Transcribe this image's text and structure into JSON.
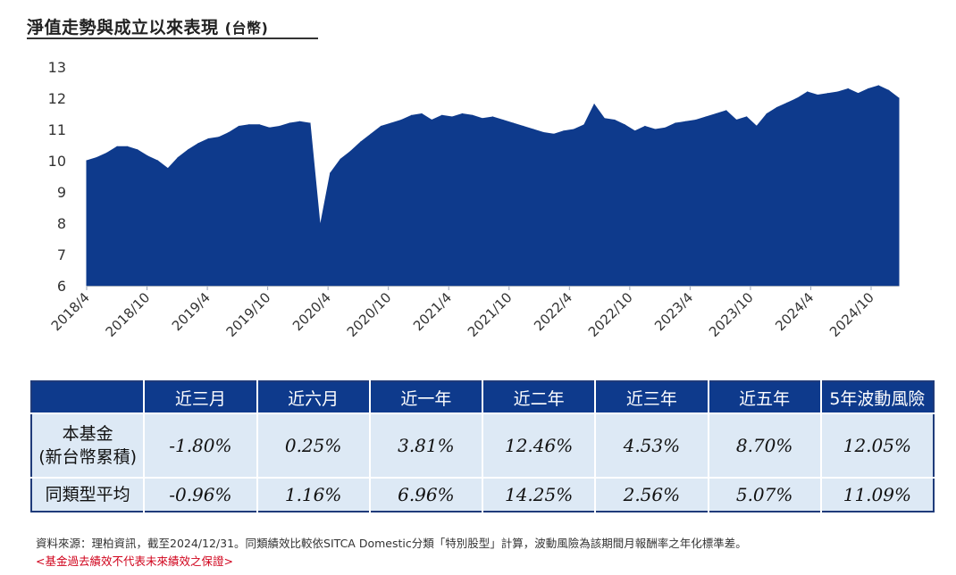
{
  "title": "淨值走勢與成立以來表現",
  "title_unit": "(台幣)",
  "chart_data": {
    "type": "area",
    "title": "",
    "xlabel": "",
    "ylabel": "",
    "ylim": [
      6,
      13
    ],
    "yticks": [
      6,
      7,
      8,
      9,
      10,
      11,
      12,
      13
    ],
    "xticks": [
      "2018/4",
      "2018/10",
      "2019/4",
      "2019/10",
      "2020/4",
      "2020/10",
      "2021/4",
      "2021/10",
      "2022/4",
      "2022/10",
      "2023/4",
      "2023/10",
      "2024/4",
      "2024/10"
    ],
    "grid": false,
    "legend": "none",
    "color": "#0e3a8c",
    "x": [
      "2018/4",
      "2018/5",
      "2018/6",
      "2018/7",
      "2018/8",
      "2018/9",
      "2018/10",
      "2018/11",
      "2018/12",
      "2019/1",
      "2019/2",
      "2019/3",
      "2019/4",
      "2019/5",
      "2019/6",
      "2019/7",
      "2019/8",
      "2019/9",
      "2019/10",
      "2019/11",
      "2019/12",
      "2020/1",
      "2020/2",
      "2020/3",
      "2020/4",
      "2020/5",
      "2020/6",
      "2020/7",
      "2020/8",
      "2020/9",
      "2020/10",
      "2020/11",
      "2020/12",
      "2021/1",
      "2021/2",
      "2021/3",
      "2021/4",
      "2021/5",
      "2021/6",
      "2021/7",
      "2021/8",
      "2021/9",
      "2021/10",
      "2021/11",
      "2021/12",
      "2022/1",
      "2022/2",
      "2022/3",
      "2022/4",
      "2022/5",
      "2022/6",
      "2022/7",
      "2022/8",
      "2022/9",
      "2022/10",
      "2022/11",
      "2022/12",
      "2023/1",
      "2023/2",
      "2023/3",
      "2023/4",
      "2023/5",
      "2023/6",
      "2023/7",
      "2023/8",
      "2023/9",
      "2023/10",
      "2023/11",
      "2023/12",
      "2024/1",
      "2024/2",
      "2024/3",
      "2024/4",
      "2024/5",
      "2024/6",
      "2024/7",
      "2024/8",
      "2024/9",
      "2024/10",
      "2024/11",
      "2024/12"
    ],
    "values": [
      10.0,
      10.1,
      10.25,
      10.45,
      10.45,
      10.35,
      10.15,
      10.0,
      9.75,
      10.1,
      10.35,
      10.55,
      10.7,
      10.75,
      10.9,
      11.1,
      11.15,
      11.15,
      11.05,
      11.1,
      11.2,
      11.25,
      11.2,
      7.9,
      9.6,
      10.05,
      10.3,
      10.6,
      10.85,
      11.1,
      11.2,
      11.3,
      11.45,
      11.5,
      11.3,
      11.45,
      11.4,
      11.5,
      11.45,
      11.35,
      11.4,
      11.3,
      11.2,
      11.1,
      11.0,
      10.9,
      10.85,
      10.95,
      11.0,
      11.15,
      11.8,
      11.35,
      11.3,
      11.15,
      10.95,
      11.1,
      11.0,
      11.05,
      11.2,
      11.25,
      11.3,
      11.4,
      11.5,
      11.6,
      11.3,
      11.4,
      11.1,
      11.5,
      11.7,
      11.85,
      12.0,
      12.2,
      12.1,
      12.15,
      12.2,
      12.3,
      12.15,
      12.3,
      12.4,
      12.25,
      12.0
    ]
  },
  "table": {
    "headers": [
      "",
      "近三月",
      "近六月",
      "近一年",
      "近二年",
      "近三年",
      "近五年",
      "5年波動風險"
    ],
    "rows": [
      {
        "label_line1": "本基金",
        "label_line2": "(新台幣累積)",
        "values": [
          "-1.80%",
          "0.25%",
          "3.81%",
          "12.46%",
          "4.53%",
          "8.70%",
          "12.05%"
        ]
      },
      {
        "label": "同類型平均",
        "values": [
          "-0.96%",
          "1.16%",
          "6.96%",
          "14.25%",
          "2.56%",
          "5.07%",
          "11.09%"
        ]
      }
    ]
  },
  "footnote": "資料來源：理柏資訊，截至2024/12/31。同類績效比較依SITCA Domestic分類「特別股型」計算，波動風險為該期間月報酬率之年化標準差。",
  "disclaimer": "<基金過去績效不代表未來績效之保證>"
}
